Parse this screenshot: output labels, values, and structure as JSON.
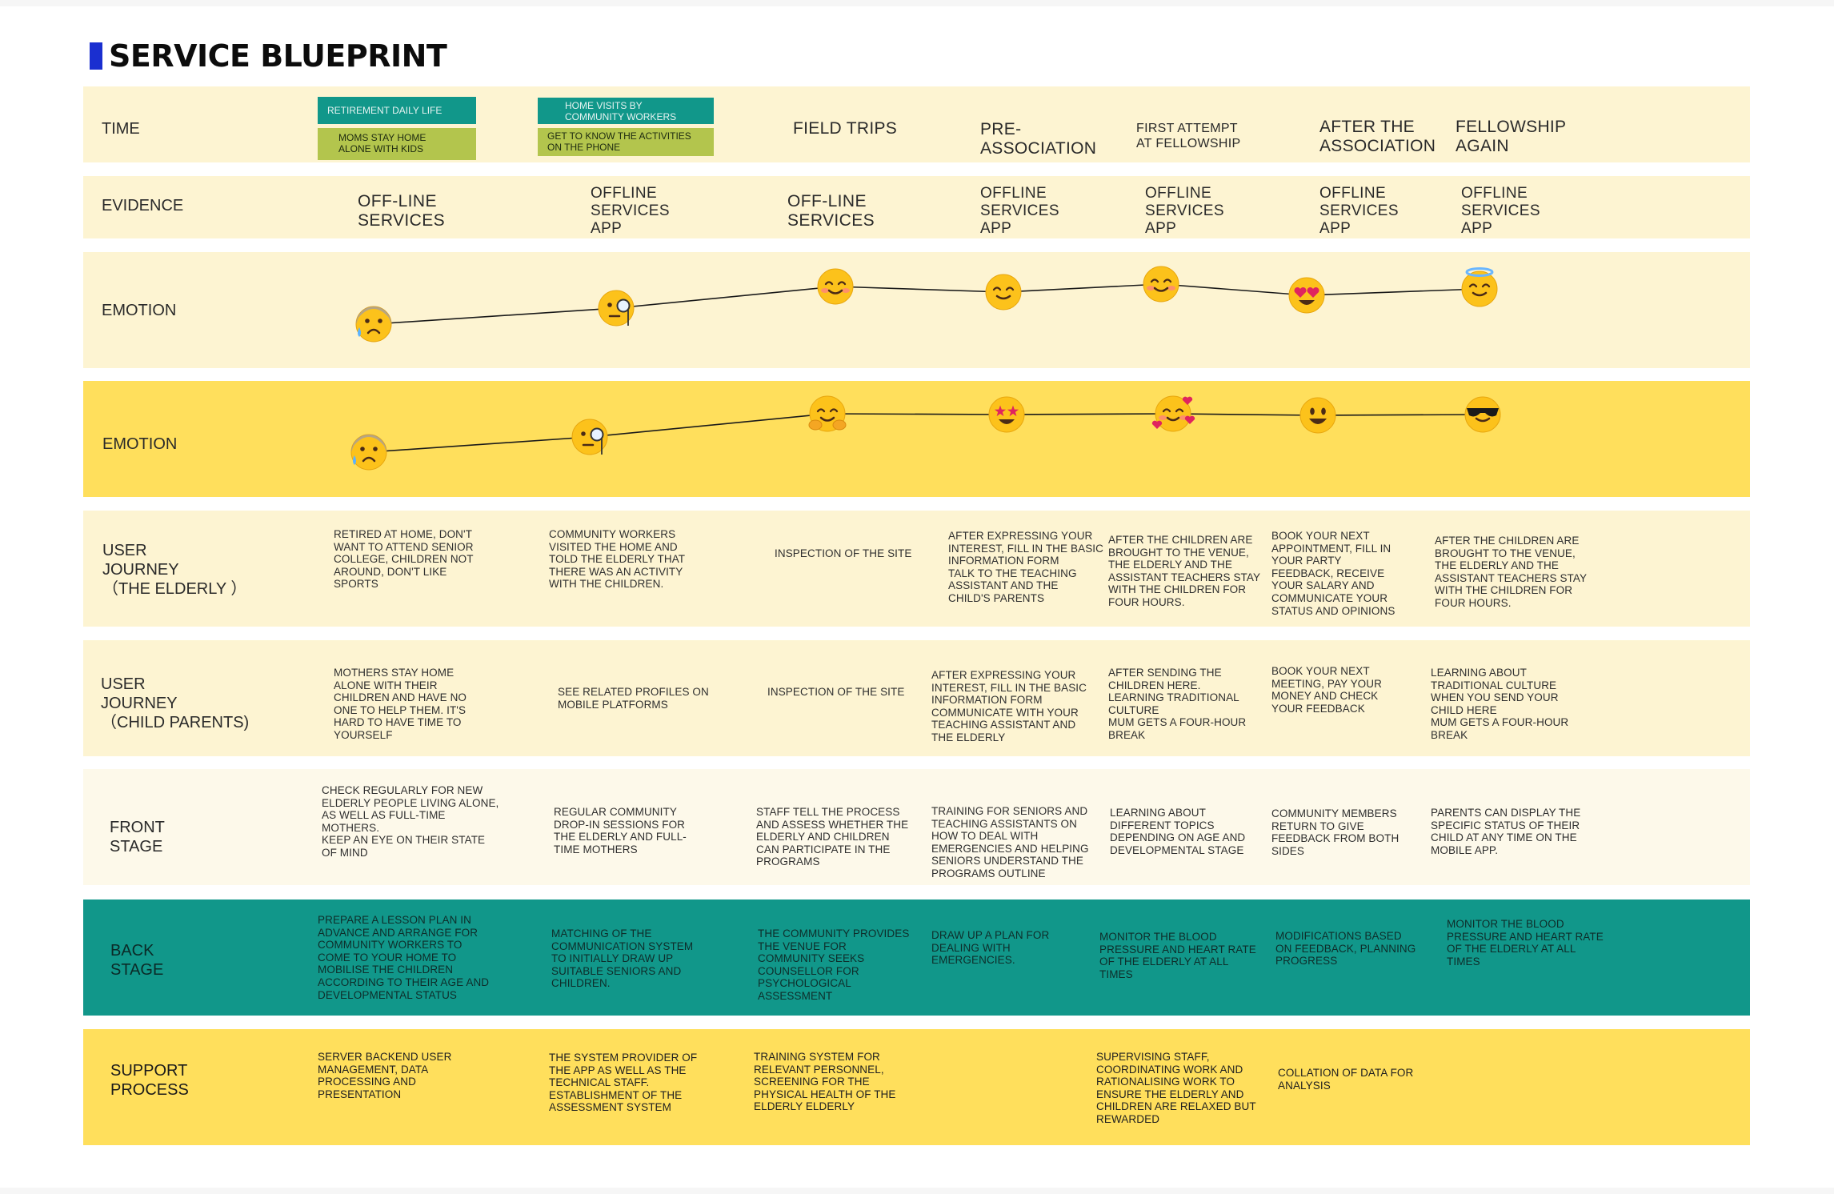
{
  "title": "SERVICE BLUEPRINT",
  "colors": {
    "accent_blue": "#1a2fd0",
    "band_cream": "#fdf4d2",
    "band_yellow": "#ffdf5c",
    "band_light": "#fdf9ea",
    "band_teal": "#11978a",
    "tag_teal": "#11978a",
    "tag_green": "#b3c54d"
  },
  "rows": {
    "time": "TIME",
    "evidence": "EVIDENCE",
    "emotion_elderly": "EMOTION",
    "emotion_parents": "EMOTION",
    "journey_elderly": "USER\nJOURNEY\n（THE ELDERLY ）",
    "journey_parents": "USER\nJOURNEY\n（CHILD PARENTS)",
    "front_stage": "FRONT\nSTAGE",
    "back_stage": "BACK\nSTAGE",
    "support": "SUPPORT\nPROCESS"
  },
  "time": {
    "tags": [
      {
        "text": "RETIREMENT DAILY LIFE",
        "color": "teal"
      },
      {
        "text": "MOMS STAY HOME\nALONE WITH KIDS",
        "color": "green"
      },
      {
        "text": "HOME VISITS BY\nCOMMUNITY WORKERS",
        "color": "teal"
      },
      {
        "text": "GET TO KNOW THE ACTIVITIES\nON THE PHONE",
        "color": "green"
      }
    ],
    "stages": [
      "FIELD TRIPS",
      "PRE-\nASSOCIATION",
      "FIRST ATTEMPT\nAT FELLOWSHIP",
      "AFTER THE\nASSOCIATION",
      "FELLOWSHIP\nAGAIN"
    ]
  },
  "evidence": [
    "OFF-LINE\nSERVICES",
    "OFFLINE\nSERVICES\nAPP",
    "OFF-LINE\nSERVICES",
    "OFFLINE\nSERVICES\nAPP",
    "OFFLINE\nSERVICES\nAPP",
    "OFFLINE\nSERVICES\nAPP",
    "OFFLINE\nSERVICES\nAPP"
  ],
  "emotion_elderly": [
    "anxious-sweat-face",
    "monocle-face",
    "blushing-smile-face",
    "relieved-face",
    "blushing-smile-face",
    "heart-eyes-face",
    "halo-face"
  ],
  "emotion_parents": [
    "anxious-sweat-face",
    "monocle-face",
    "hugging-face",
    "star-struck-face",
    "face-with-hearts",
    "grinning-face",
    "sunglasses-face"
  ],
  "journey_elderly": [
    "RETIRED AT HOME, DON'T\nWANT TO ATTEND SENIOR\nCOLLEGE, CHILDREN NOT\nAROUND, DON'T LIKE\nSPORTS",
    "COMMUNITY WORKERS\nVISITED THE HOME AND\nTOLD THE ELDERLY THAT\nTHERE WAS AN ACTIVITY\nWITH THE CHILDREN.",
    "INSPECTION OF THE SITE",
    "AFTER EXPRESSING YOUR\nINTEREST, FILL IN THE BASIC\nINFORMATION FORM\nTALK TO THE TEACHING\nASSISTANT AND THE\nCHILD'S PARENTS",
    "AFTER THE CHILDREN ARE\nBROUGHT TO THE VENUE,\nTHE ELDERLY AND THE\nASSISTANT TEACHERS STAY\nWITH THE CHILDREN FOR\nFOUR HOURS.",
    "BOOK YOUR NEXT\nAPPOINTMENT, FILL IN\nYOUR PARTY\nFEEDBACK, RECEIVE\nYOUR SALARY AND\nCOMMUNICATE YOUR\nSTATUS AND OPINIONS",
    "AFTER THE CHILDREN ARE\nBROUGHT TO THE VENUE,\nTHE ELDERLY AND THE\nASSISTANT TEACHERS STAY\nWITH THE CHILDREN FOR\nFOUR HOURS."
  ],
  "journey_parents": [
    "MOTHERS STAY HOME\nALONE WITH THEIR\nCHILDREN AND HAVE NO\nONE TO HELP THEM. IT'S\nHARD TO HAVE TIME TO\nYOURSELF",
    "SEE RELATED PROFILES ON\nMOBILE PLATFORMS",
    "INSPECTION OF THE SITE",
    "AFTER EXPRESSING YOUR\nINTEREST, FILL IN THE BASIC\nINFORMATION FORM\nCOMMUNICATE WITH YOUR\nTEACHING ASSISTANT AND\nTHE ELDERLY",
    "AFTER SENDING THE\nCHILDREN HERE.\nLEARNING TRADITIONAL\nCULTURE\nMUM GETS A FOUR-HOUR\nBREAK",
    "BOOK YOUR NEXT\nMEETING, PAY YOUR\nMONEY AND CHECK\nYOUR FEEDBACK",
    "LEARNING ABOUT\nTRADITIONAL CULTURE\nWHEN YOU SEND YOUR\nCHILD HERE\nMUM GETS A FOUR-HOUR\nBREAK"
  ],
  "front_stage": [
    "CHECK REGULARLY FOR NEW\nELDERLY PEOPLE LIVING ALONE,\nAS WELL AS FULL-TIME\nMOTHERS.\nKEEP AN EYE ON THEIR STATE\nOF MIND",
    "REGULAR COMMUNITY\nDROP-IN SESSIONS FOR\nTHE ELDERLY AND FULL-\nTIME MOTHERS",
    "STAFF TELL THE PROCESS\nAND ASSESS WHETHER THE\nELDERLY AND CHILDREN\nCAN PARTICIPATE IN THE\nPROGRAMS",
    "TRAINING FOR SENIORS AND\nTEACHING ASSISTANTS ON\nHOW TO DEAL WITH\nEMERGENCIES AND HELPING\nSENIORS UNDERSTAND THE\nPROGRAMS OUTLINE",
    "LEARNING ABOUT\nDIFFERENT TOPICS\nDEPENDING ON AGE AND\nDEVELOPMENTAL STAGE",
    "COMMUNITY MEMBERS\nRETURN TO GIVE\nFEEDBACK FROM BOTH\nSIDES",
    "PARENTS CAN DISPLAY THE\nSPECIFIC STATUS OF THEIR\nCHILD AT ANY TIME ON THE\nMOBILE APP."
  ],
  "back_stage": [
    "PREPARE A LESSON PLAN IN\nADVANCE AND ARRANGE FOR\nCOMMUNITY WORKERS TO\nCOME TO YOUR HOME TO\nMOBILISE THE CHILDREN\nACCORDING TO THEIR AGE AND\nDEVELOPMENTAL STATUS",
    "MATCHING OF THE\nCOMMUNICATION SYSTEM\nTO INITIALLY DRAW UP\nSUITABLE SENIORS AND\nCHILDREN.",
    "THE COMMUNITY PROVIDES\nTHE VENUE FOR\nCOMMUNITY SEEKS\nCOUNSELLOR FOR\nPSYCHOLOGICAL\nASSESSMENT",
    "DRAW UP A PLAN FOR\nDEALING WITH\nEMERGENCIES.",
    "MONITOR THE BLOOD\nPRESSURE AND HEART RATE\nOF THE ELDERLY AT ALL\nTIMES",
    "MODIFICATIONS BASED\nON FEEDBACK, PLANNING\nPROGRESS",
    "MONITOR THE BLOOD\nPRESSURE AND HEART RATE\nOF THE ELDERLY AT ALL\nTIMES"
  ],
  "support": [
    "SERVER BACKEND USER\nMANAGEMENT, DATA\nPROCESSING AND\nPRESENTATION",
    "THE SYSTEM PROVIDER OF\nTHE APP AS WELL AS THE\nTECHNICAL STAFF.\nESTABLISHMENT OF THE\nASSESSMENT SYSTEM",
    "TRAINING SYSTEM FOR\nRELEVANT PERSONNEL,\nSCREENING FOR THE\nPHYSICAL HEALTH OF THE\nELDERLY ELDERLY",
    "SUPERVISING STAFF,\nCOORDINATING WORK AND\nRATIONALISING WORK TO\nENSURE THE ELDERLY AND\nCHILDREN ARE RELAXED BUT\nREWARDED",
    "COLLATION OF DATA FOR\nANALYSIS"
  ]
}
